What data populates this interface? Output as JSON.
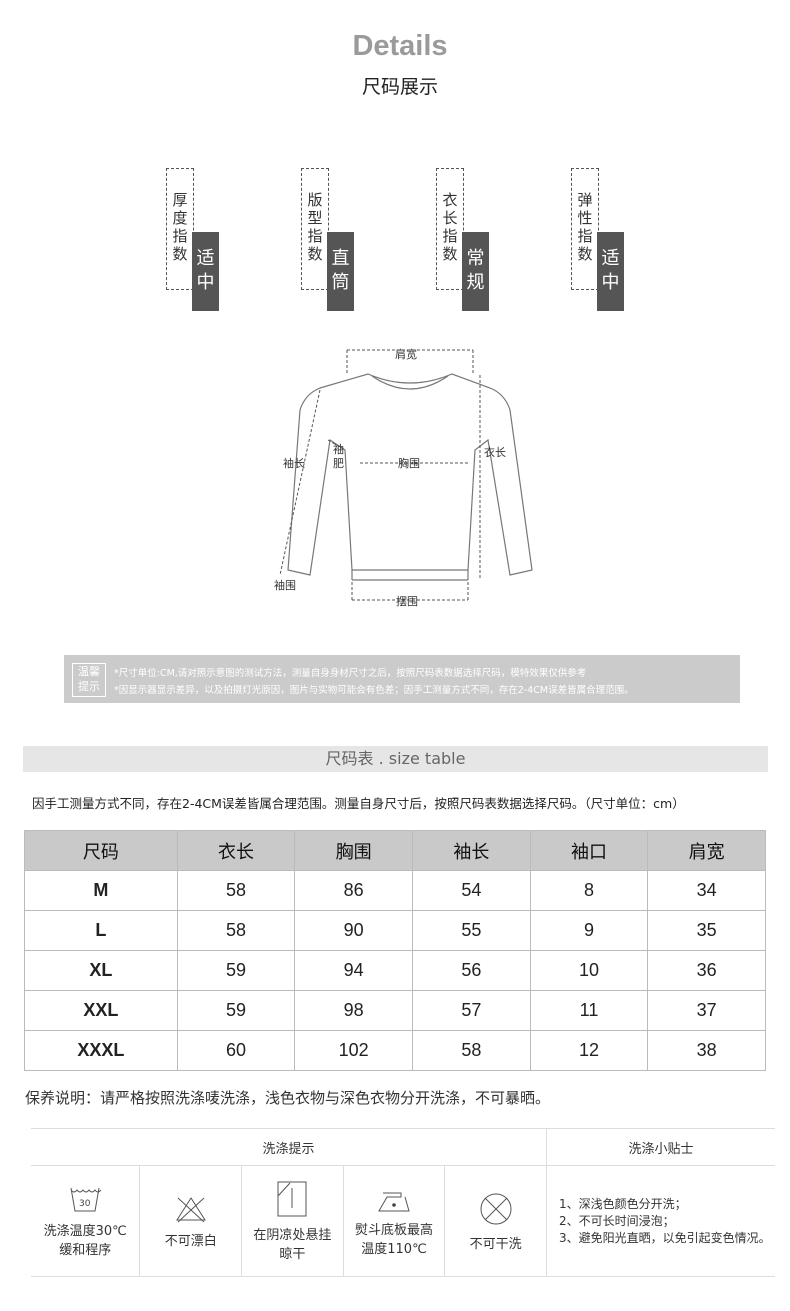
{
  "header": {
    "title": "Details",
    "subtitle": "尺码展示"
  },
  "indicators": [
    {
      "label": "厚度指数",
      "value": "适中"
    },
    {
      "label": "版型指数",
      "value": "直筒"
    },
    {
      "label": "衣长指数",
      "value": "常规"
    },
    {
      "label": "弹性指数",
      "value": "适中"
    }
  ],
  "diagram": {
    "shoulder": "肩宽",
    "sleeve_length": "袖长",
    "sleeve_width": "袖肥",
    "chest": "胸围",
    "length": "衣长",
    "cuff": "袖围",
    "hem": "摆围"
  },
  "tips": {
    "badge_line1": "温馨",
    "badge_line2": "提示",
    "line1": "*尺寸单位:CM,请对照示意图的测试方法，测量自身身材尺寸之后，按照尺码表数据选择尺码，模特效果仅供参考",
    "line2": "*因显示器显示差异，以及拍摄灯光原因，图片与实物可能会有色差；因手工测量方式不同，存在2-4CM误差皆属合理范围。"
  },
  "size_table": {
    "title": "尺码表 . size table",
    "note": "因手工测量方式不同，存在2-4CM误差皆属合理范围。测量自身尺寸后，按照尺码表数据选择尺码。（尺寸单位：cm）",
    "headers": [
      "尺码",
      "衣长",
      "胸围",
      "袖长",
      "袖口",
      "肩宽"
    ],
    "rows": [
      [
        "M",
        "58",
        "86",
        "54",
        "8",
        "34"
      ],
      [
        "L",
        "58",
        "90",
        "55",
        "9",
        "35"
      ],
      [
        "XL",
        "59",
        "94",
        "56",
        "10",
        "36"
      ],
      [
        "XXL",
        "59",
        "98",
        "57",
        "11",
        "37"
      ],
      [
        "XXXL",
        "60",
        "102",
        "58",
        "12",
        "38"
      ]
    ]
  },
  "care_note": "保养说明：请严格按照洗涤唛洗涤，浅色衣物与深色衣物分开洗涤，不可暴晒。",
  "wash": {
    "header_left": "洗涤提示",
    "header_right": "洗涤小贴士",
    "items": [
      {
        "icon": "wash-30-icon",
        "line1": "洗涤温度30℃",
        "line2": "缓和程序",
        "temp": "30"
      },
      {
        "icon": "no-bleach-icon",
        "line1": "不可漂白",
        "line2": ""
      },
      {
        "icon": "hang-dry-shade-icon",
        "line1": "在阴凉处悬挂",
        "line2": "晾干"
      },
      {
        "icon": "iron-low-icon",
        "line1": "熨斗底板最高",
        "line2": "温度110℃"
      },
      {
        "icon": "no-dry-clean-icon",
        "line1": "不可干洗",
        "line2": ""
      }
    ],
    "tips": [
      "1、深浅色颜色分开洗；",
      "2、不可长时间浸泡；",
      "3、避免阳光直晒，以免引起变色情况。"
    ]
  }
}
